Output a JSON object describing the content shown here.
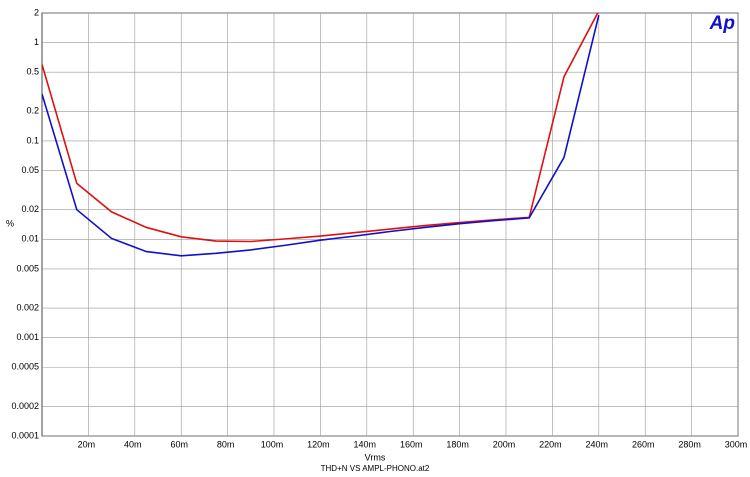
{
  "chart_data": {
    "type": "line",
    "logo": "Ap",
    "ylabel": "%",
    "xlabel": "Vrms",
    "caption": "THD+N VS AMPL-PHONO.at2",
    "x": [
      0,
      0.015,
      0.03,
      0.045,
      0.06,
      0.075,
      0.09,
      0.105,
      0.12,
      0.135,
      0.15,
      0.165,
      0.18,
      0.195,
      0.21,
      0.225,
      0.24
    ],
    "series": [
      {
        "color": "#e01010",
        "values": [
          0.6,
          0.037,
          0.019,
          0.0132,
          0.0106,
          0.0096,
          0.0095,
          0.0101,
          0.0108,
          0.0117,
          0.0127,
          0.0138,
          0.0148,
          0.0158,
          0.0167,
          0.45,
          2.1
        ]
      },
      {
        "color": "#1010c8",
        "values": [
          0.3,
          0.02,
          0.0102,
          0.0075,
          0.0068,
          0.0072,
          0.0078,
          0.0087,
          0.0098,
          0.0108,
          0.012,
          0.0132,
          0.0144,
          0.0155,
          0.0165,
          0.068,
          1.9
        ]
      }
    ],
    "xlim": [
      0,
      0.3
    ],
    "xticks": [
      {
        "value": 0.02,
        "label": "20m"
      },
      {
        "value": 0.04,
        "label": "40m"
      },
      {
        "value": 0.06,
        "label": "60m"
      },
      {
        "value": 0.08,
        "label": "80m"
      },
      {
        "value": 0.1,
        "label": "100m"
      },
      {
        "value": 0.12,
        "label": "120m"
      },
      {
        "value": 0.14,
        "label": "140m"
      },
      {
        "value": 0.16,
        "label": "160m"
      },
      {
        "value": 0.18,
        "label": "180m"
      },
      {
        "value": 0.2,
        "label": "200m"
      },
      {
        "value": 0.22,
        "label": "220m"
      },
      {
        "value": 0.24,
        "label": "240m"
      },
      {
        "value": 0.26,
        "label": "260m"
      },
      {
        "value": 0.28,
        "label": "280m"
      },
      {
        "value": 0.3,
        "label": "300m"
      }
    ],
    "ylim": [
      0.0001,
      2
    ],
    "ylog": true,
    "yticks": [
      0.0001,
      0.0002,
      0.0005,
      0.001,
      0.002,
      0.005,
      0.01,
      0.02,
      0.05,
      0.1,
      0.2,
      0.5,
      1,
      2
    ],
    "grid": true
  }
}
